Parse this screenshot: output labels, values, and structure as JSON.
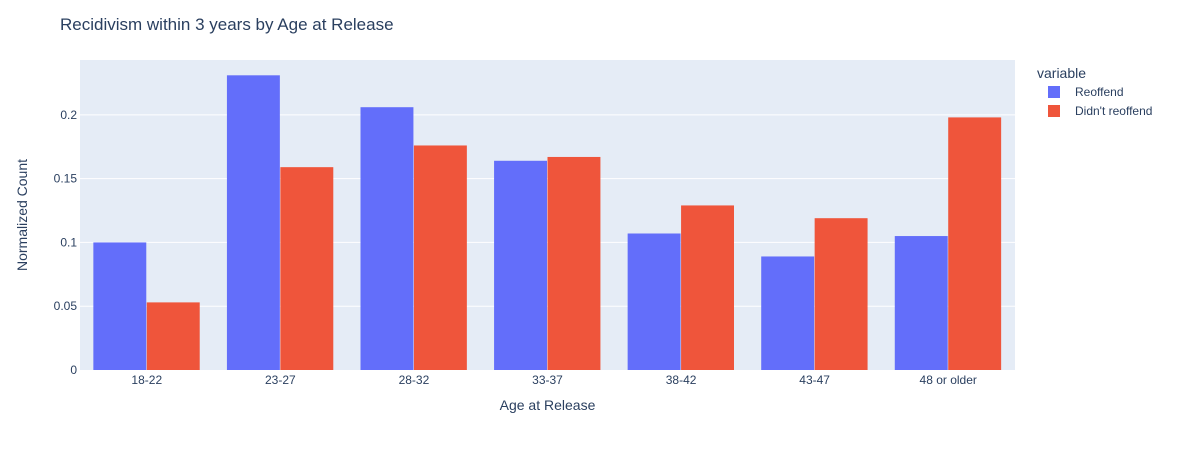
{
  "chart_data": {
    "type": "bar",
    "title": "Recidivism within 3 years by Age at Release",
    "xlabel": "Age at Release",
    "ylabel": "Normalized Count",
    "categories": [
      "18-22",
      "23-27",
      "28-32",
      "33-37",
      "38-42",
      "43-47",
      "48 or older"
    ],
    "series": [
      {
        "name": "Reoffend",
        "color": "#636efa",
        "values": [
          0.1,
          0.231,
          0.206,
          0.164,
          0.107,
          0.089,
          0.105
        ]
      },
      {
        "name": "Didn't reoffend",
        "color": "#ef553b",
        "values": [
          0.053,
          0.159,
          0.176,
          0.167,
          0.129,
          0.119,
          0.198
        ]
      }
    ],
    "ylim": [
      0,
      0.243
    ],
    "yticks": [
      0,
      0.05,
      0.1,
      0.15,
      0.2
    ],
    "ytick_labels": [
      "0",
      "0.05",
      "0.1",
      "0.15",
      "0.2"
    ],
    "grid": true,
    "legend": {
      "title": "variable",
      "placement": "right"
    },
    "colors": {
      "plot_background": "#e5ecf6",
      "gridline": "#ffffff",
      "text": "#2a3f5f"
    }
  }
}
